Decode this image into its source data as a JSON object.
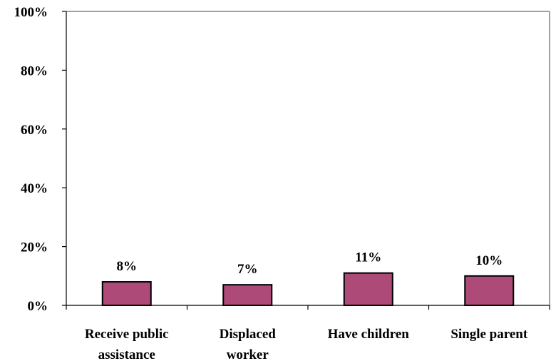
{
  "chart_data": {
    "type": "bar",
    "categories": [
      [
        "Receive public",
        "assistance"
      ],
      [
        "Displaced",
        "worker"
      ],
      [
        "Have children"
      ],
      [
        "Single parent"
      ]
    ],
    "values": [
      8,
      7,
      11,
      10
    ],
    "data_labels": [
      "8%",
      "7%",
      "11%",
      "10%"
    ],
    "y_ticks": [
      "0%",
      "20%",
      "40%",
      "60%",
      "80%",
      "100%"
    ],
    "ylim": [
      0,
      100
    ],
    "title": "",
    "xlabel": "",
    "ylabel": "",
    "grid": false,
    "colors": {
      "bar_fill": "#AD4A78",
      "bar_stroke": "#000000",
      "axis": "#000000",
      "frame": "#808080"
    }
  }
}
